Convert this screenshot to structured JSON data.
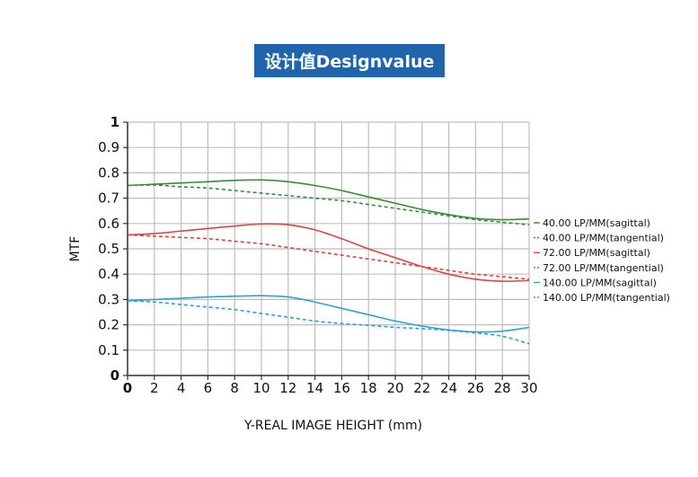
{
  "header": {
    "title": "设计值Designvalue"
  },
  "chart_data": {
    "type": "line",
    "title": "设计值Designvalue",
    "xlabel": "Y-REAL IMAGE HEIGHT (mm)",
    "ylabel": "MTF",
    "xlim": [
      0,
      30
    ],
    "ylim": [
      0,
      1
    ],
    "x_ticks": [
      "0",
      "2",
      "4",
      "6",
      "8",
      "10",
      "12",
      "14",
      "16",
      "18",
      "20",
      "22",
      "24",
      "26",
      "28",
      "30"
    ],
    "y_ticks": [
      "0",
      "0.1",
      "0.2",
      "0.3",
      "0.4",
      "0.5",
      "0.6",
      "0.7",
      "0.8",
      "0.9",
      "1"
    ],
    "grid": true,
    "legend_position": "right",
    "x": [
      0,
      2,
      4,
      6,
      8,
      10,
      12,
      14,
      16,
      18,
      20,
      22,
      24,
      26,
      28,
      30
    ],
    "series": [
      {
        "name": "40.00 LP/MM(sagittal)",
        "color": "#3a8a3a",
        "dash": false,
        "values": [
          0.75,
          0.755,
          0.76,
          0.765,
          0.77,
          0.772,
          0.765,
          0.75,
          0.73,
          0.705,
          0.68,
          0.655,
          0.635,
          0.62,
          0.615,
          0.618
        ]
      },
      {
        "name": "40.00 LP/MM(tangential)",
        "color": "#3a8a3a",
        "dash": true,
        "values": [
          0.75,
          0.752,
          0.745,
          0.74,
          0.73,
          0.72,
          0.71,
          0.7,
          0.69,
          0.675,
          0.66,
          0.645,
          0.63,
          0.615,
          0.605,
          0.595
        ]
      },
      {
        "name": "72.00 LP/MM(sagittal)",
        "color": "#d64545",
        "dash": false,
        "values": [
          0.555,
          0.56,
          0.57,
          0.58,
          0.59,
          0.598,
          0.595,
          0.575,
          0.54,
          0.5,
          0.465,
          0.43,
          0.4,
          0.38,
          0.372,
          0.375
        ]
      },
      {
        "name": "72.00 LP/MM(tangential)",
        "color": "#d64545",
        "dash": true,
        "values": [
          0.555,
          0.55,
          0.545,
          0.54,
          0.53,
          0.52,
          0.505,
          0.49,
          0.475,
          0.46,
          0.445,
          0.43,
          0.415,
          0.4,
          0.39,
          0.38
        ]
      },
      {
        "name": "140.00 LP/MM(sagittal)",
        "color": "#2f9fd0",
        "dash": false,
        "values": [
          0.295,
          0.3,
          0.305,
          0.31,
          0.313,
          0.315,
          0.31,
          0.29,
          0.265,
          0.24,
          0.215,
          0.195,
          0.18,
          0.172,
          0.175,
          0.19
        ]
      },
      {
        "name": "140.00 LP/MM(tangential)",
        "color": "#2f9fd0",
        "dash": true,
        "values": [
          0.295,
          0.29,
          0.28,
          0.27,
          0.26,
          0.245,
          0.23,
          0.215,
          0.205,
          0.198,
          0.19,
          0.185,
          0.178,
          0.168,
          0.155,
          0.125
        ]
      }
    ]
  }
}
